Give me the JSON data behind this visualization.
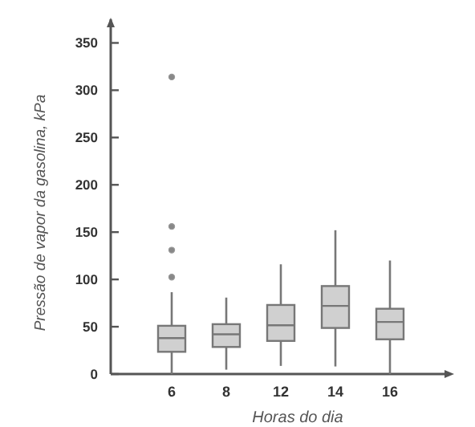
{
  "chart_data": {
    "type": "box",
    "xlabel": "Horas do dia",
    "ylabel": "Pressão de vapor da gasolina, kPa",
    "categories": [
      "6",
      "8",
      "12",
      "14",
      "16"
    ],
    "color": "#d0d0d0",
    "ylim": [
      0,
      375
    ],
    "yticks": [
      0,
      50,
      100,
      150,
      200,
      250,
      300,
      350
    ],
    "grid": false,
    "boxes": [
      {
        "low": 0,
        "q1": 23.5,
        "median": 38,
        "q3": 51,
        "high": 86.5,
        "outliers": [
          102.5,
          131,
          156,
          314
        ]
      },
      {
        "low": 4.6,
        "q1": 28.6,
        "median": 42,
        "q3": 52.7,
        "high": 80.8
      },
      {
        "low": 8.6,
        "q1": 35,
        "median": 51.5,
        "q3": 73,
        "high": 116
      },
      {
        "low": 8,
        "q1": 48.7,
        "median": 72,
        "q3": 93,
        "high": 152
      },
      {
        "low": 0,
        "q1": 36.7,
        "median": 55,
        "q3": 69,
        "high": 120
      }
    ]
  }
}
